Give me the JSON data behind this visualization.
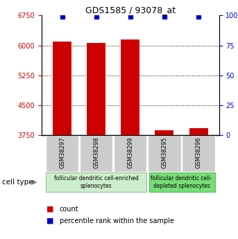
{
  "title": "GDS1585 / 93078_at",
  "samples": [
    "GSM38297",
    "GSM38298",
    "GSM38299",
    "GSM38295",
    "GSM38296"
  ],
  "counts": [
    6100,
    6065,
    6155,
    3870,
    3930
  ],
  "percentiles": [
    99,
    99,
    99,
    99,
    99
  ],
  "ylim_left": [
    3750,
    6750
  ],
  "yticks_left": [
    3750,
    4500,
    5250,
    6000,
    6750
  ],
  "ylim_right": [
    0,
    100
  ],
  "yticks_right": [
    0,
    25,
    50,
    75,
    100
  ],
  "bar_color": "#cc0000",
  "dot_color": "#0000cc",
  "group1_label": "follicular dendritic cell-enriched\nsplenocytes",
  "group2_label": "follicular dendritic cell-\ndepleted splenocytes",
  "group1_samples": [
    "GSM38297",
    "GSM38298",
    "GSM38299"
  ],
  "group2_samples": [
    "GSM38295",
    "GSM38296"
  ],
  "cell_type_label": "cell type",
  "legend_count_label": "count",
  "legend_pct_label": "percentile rank within the sample",
  "group1_color": "#cceecc",
  "group2_color": "#77dd77",
  "sample_box_color": "#cccccc",
  "bar_width": 0.55
}
